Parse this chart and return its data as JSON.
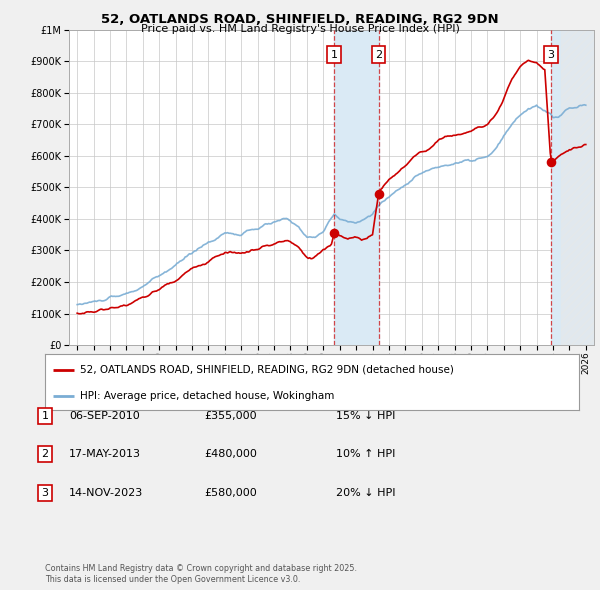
{
  "title": "52, OATLANDS ROAD, SHINFIELD, READING, RG2 9DN",
  "subtitle": "Price paid vs. HM Land Registry's House Price Index (HPI)",
  "red_label": "52, OATLANDS ROAD, SHINFIELD, READING, RG2 9DN (detached house)",
  "blue_label": "HPI: Average price, detached house, Wokingham",
  "sales": [
    {
      "num": 1,
      "date": "06-SEP-2010",
      "price": 355000,
      "pct": "15%",
      "dir": "↓",
      "year": 2010.67
    },
    {
      "num": 2,
      "date": "17-MAY-2013",
      "price": 480000,
      "pct": "10%",
      "dir": "↑",
      "year": 2013.37
    },
    {
      "num": 3,
      "date": "14-NOV-2023",
      "price": 580000,
      "pct": "20%",
      "dir": "↓",
      "year": 2023.87
    }
  ],
  "footnote1": "Contains HM Land Registry data © Crown copyright and database right 2025.",
  "footnote2": "This data is licensed under the Open Government Licence v3.0.",
  "ylim": [
    0,
    1000000
  ],
  "xlim": [
    1994.5,
    2026.5
  ],
  "bg_color": "#f0f0f0",
  "plot_bg": "#ffffff",
  "red_color": "#cc0000",
  "blue_color": "#7aadd4",
  "shade_color": "#daeaf5",
  "hatch_color": "#c8c8c8"
}
